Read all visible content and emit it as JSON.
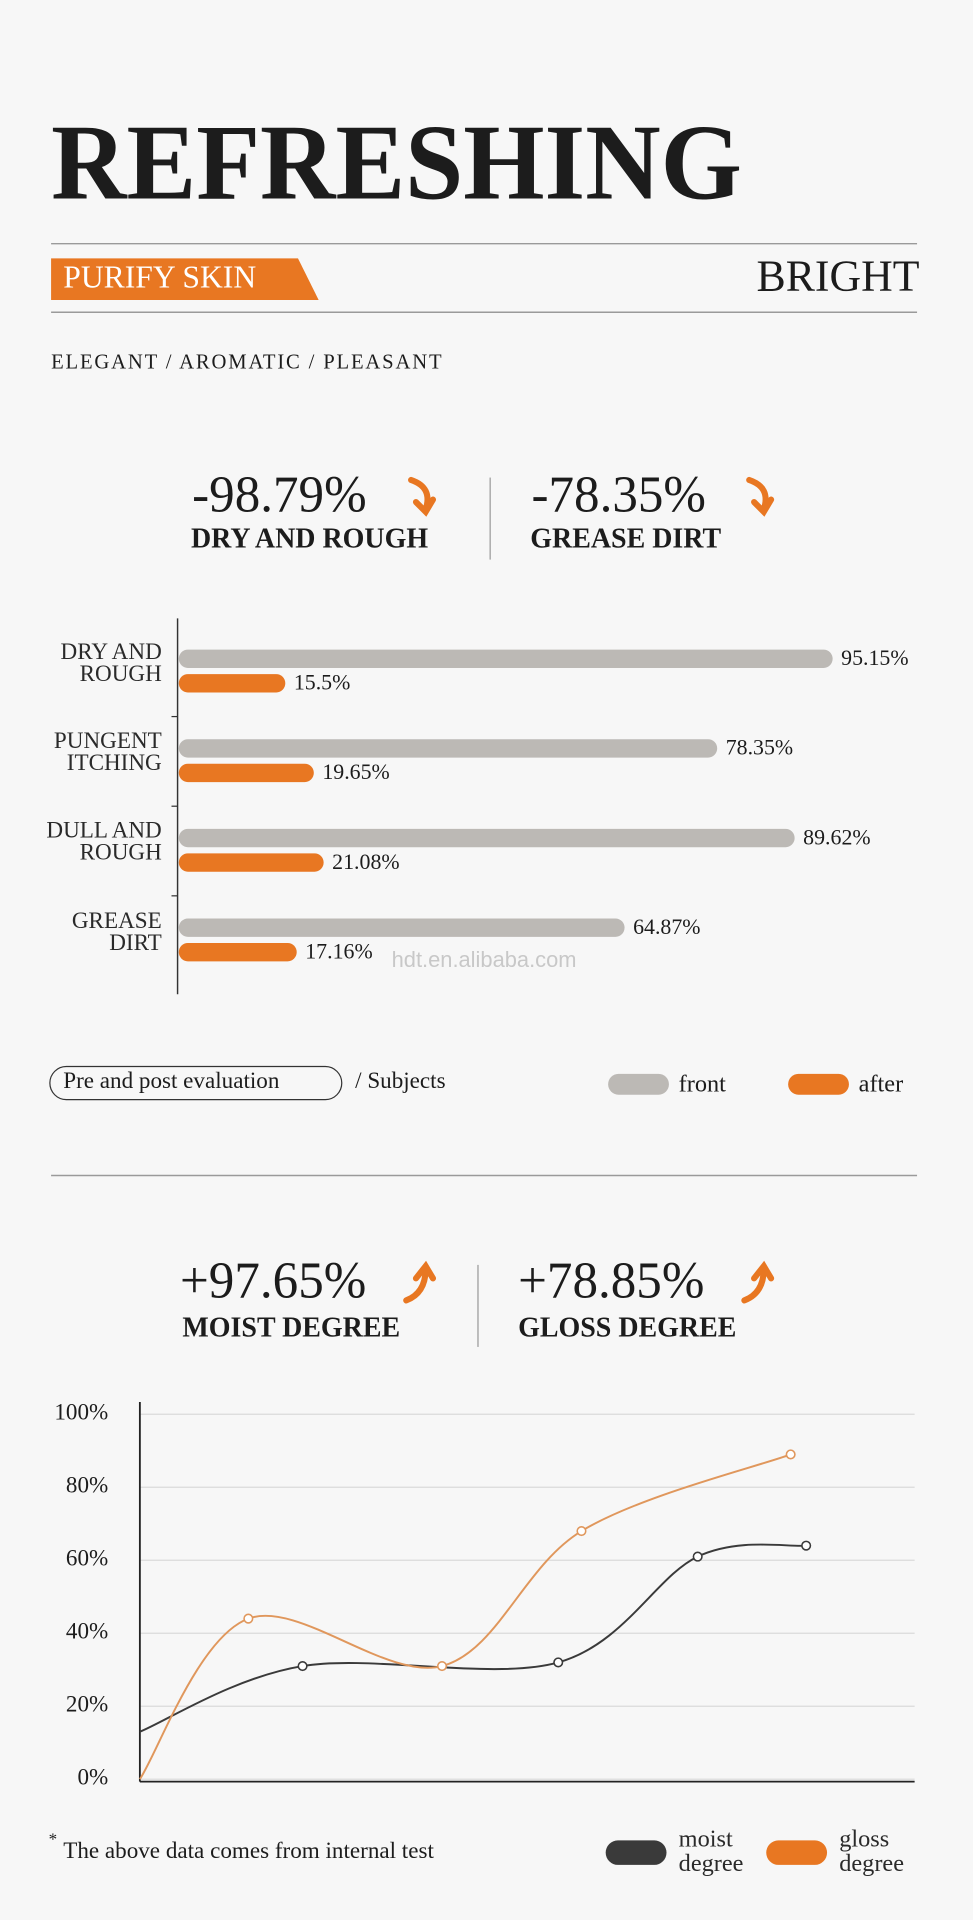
{
  "header": {
    "title": "REFRESHING",
    "badge": "PURIFY SKIN",
    "subtitle": "BRIGHT",
    "tagline": "ELEGANT / AROMATIC / PLEASANT"
  },
  "stats_top": [
    {
      "value": "-98.79%",
      "label": "DRY AND ROUGH"
    },
    {
      "value": "-78.35%",
      "label": "GREASE DIRT"
    }
  ],
  "stats_bottom": [
    {
      "value": "+97.65%",
      "label": "MOIST DEGREE"
    },
    {
      "value": "+78.85%",
      "label": "GLOSS DEGREE"
    }
  ],
  "chart_data": [
    {
      "type": "bar",
      "categories": [
        "DRY AND ROUGH",
        "PUNGENT ITCHING",
        "DULL AND ROUGH",
        "GREASE DIRT"
      ],
      "series": [
        {
          "name": "front",
          "color": "#bcb9b5",
          "values": [
            95.15,
            78.35,
            89.62,
            64.87
          ],
          "value_labels": [
            "95.15%",
            "78.35%",
            "89.62%",
            "64.87%"
          ]
        },
        {
          "name": "after",
          "color": "#e87722",
          "values": [
            15.5,
            19.65,
            21.08,
            17.16
          ],
          "value_labels": [
            "15.5%",
            "19.65%",
            "21.08%",
            "17.16%"
          ]
        }
      ],
      "note": "Pre and post evaluation",
      "note_suffix": "/ Subjects"
    },
    {
      "type": "line",
      "xlim": [
        0,
        100
      ],
      "ylim": [
        0,
        100
      ],
      "yticks": [
        {
          "value": 0,
          "label": "0%"
        },
        {
          "value": 20,
          "label": "20%"
        },
        {
          "value": 40,
          "label": "40%"
        },
        {
          "value": 60,
          "label": "60%"
        },
        {
          "value": 80,
          "label": "80%"
        },
        {
          "value": 100,
          "label": "100%"
        }
      ],
      "grid": true,
      "series": [
        {
          "name": "moist degree",
          "color": "#3a3a3a",
          "legend_color": "#3a3a3a",
          "x": [
            0,
            21,
            54,
            72,
            86
          ],
          "values": [
            13,
            31,
            32,
            61,
            64
          ]
        },
        {
          "name": "gloss degree",
          "color": "#e0975c",
          "legend_color": "#e87722",
          "x": [
            0,
            14,
            39,
            57,
            84
          ],
          "values": [
            0,
            44,
            31,
            68,
            89
          ]
        }
      ]
    }
  ],
  "footnote": {
    "mark": "*",
    "text": "The above data comes from internal test"
  },
  "watermark": "hdt.en.alibaba.com"
}
